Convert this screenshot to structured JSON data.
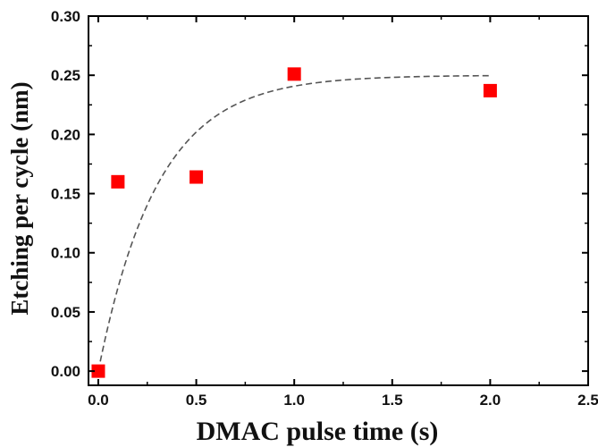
{
  "chart_data": {
    "type": "scatter",
    "xlabel": "DMAC pulse time (s)",
    "ylabel": "Etching per cycle (nm)",
    "xlim": [
      -0.05,
      2.5
    ],
    "ylim": [
      -0.012,
      0.3
    ],
    "x_ticks": [
      0.0,
      0.5,
      1.0,
      1.5,
      2.0,
      2.5
    ],
    "y_ticks": [
      0.0,
      0.05,
      0.1,
      0.15,
      0.2,
      0.25,
      0.3
    ],
    "x_tick_labels": [
      "0.0",
      "0.5",
      "1.0",
      "1.5",
      "2.0",
      "2.5"
    ],
    "y_tick_labels": [
      "0.00",
      "0.05",
      "0.10",
      "0.15",
      "0.20",
      "0.25",
      "0.30"
    ],
    "grid": false,
    "legend": "none",
    "series": [
      {
        "marker": "square",
        "color": "#ff0000",
        "x": [
          0.0,
          0.1,
          0.5,
          1.0,
          2.0
        ],
        "y": [
          0.0,
          0.16,
          0.164,
          0.251,
          0.237
        ]
      }
    ],
    "fit_curve": {
      "style": "dashed",
      "color": "#555555",
      "model": "saturating exponential",
      "a": 0.25,
      "k": 3.3,
      "x_range": [
        0.0,
        2.0
      ]
    }
  }
}
